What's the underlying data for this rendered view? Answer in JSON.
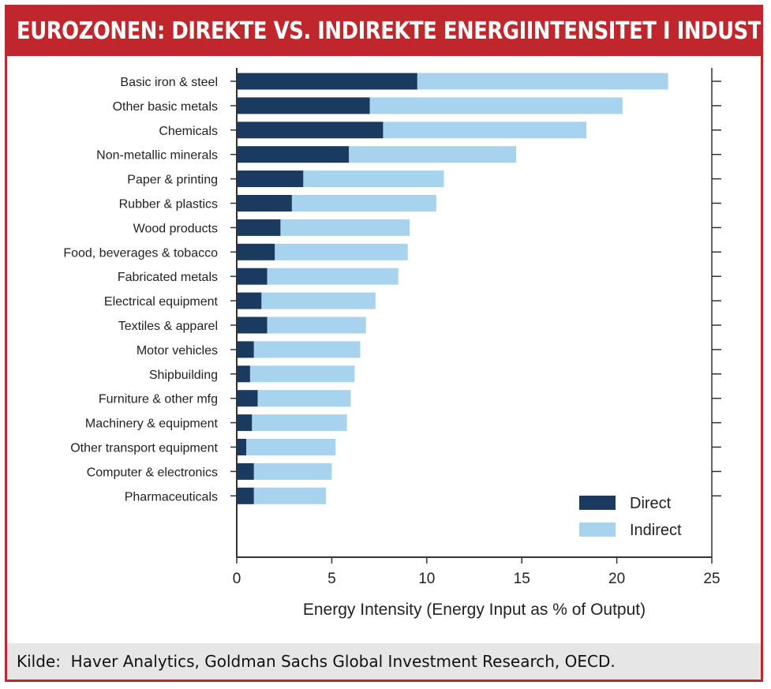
{
  "header": {
    "title": "EUROZONEN: DIREKTE VS. INDIREKTE ENERGIINTENSITET I INDUSTRIEN"
  },
  "source": {
    "text": "Kilde:  Haver Analytics, Goldman Sachs Global Investment Research, OECD."
  },
  "colors": {
    "brand": "#c0272d",
    "direct": "#1b3a5f",
    "indirect": "#a7d3ef"
  },
  "chart_data": {
    "type": "bar",
    "orientation": "horizontal",
    "stacked": true,
    "categories": [
      "Basic iron & steel",
      "Other basic metals",
      "Chemicals",
      "Non-metallic minerals",
      "Paper & printing",
      "Rubber & plastics",
      "Wood products",
      "Food, beverages & tobacco",
      "Fabricated metals",
      "Electrical equipment",
      "Textiles & apparel",
      "Motor vehicles",
      "Shipbuilding",
      "Furniture & other mfg",
      "Machinery & equipment",
      "Other transport equipment",
      "Computer & electronics",
      "Pharmaceuticals"
    ],
    "series": [
      {
        "name": "Direct",
        "values": [
          9.5,
          7.0,
          7.7,
          5.9,
          3.5,
          2.9,
          2.3,
          2.0,
          1.6,
          1.3,
          1.6,
          0.9,
          0.7,
          1.1,
          0.8,
          0.5,
          0.9,
          0.9
        ]
      },
      {
        "name": "Indirect",
        "values": [
          13.2,
          13.3,
          10.7,
          8.8,
          7.4,
          7.6,
          6.8,
          7.0,
          6.9,
          6.0,
          5.2,
          5.6,
          5.5,
          4.9,
          5.0,
          4.7,
          4.1,
          3.8
        ]
      }
    ],
    "xlabel": "Energy Intensity (Energy Input as % of Output)",
    "xlim": [
      0,
      25
    ],
    "xticks": [
      "0",
      "5",
      "10",
      "15",
      "20",
      "25"
    ],
    "xtick_values": [
      0,
      5,
      10,
      15,
      20,
      25
    ],
    "legend_position": "bottom-right",
    "grid": false
  }
}
